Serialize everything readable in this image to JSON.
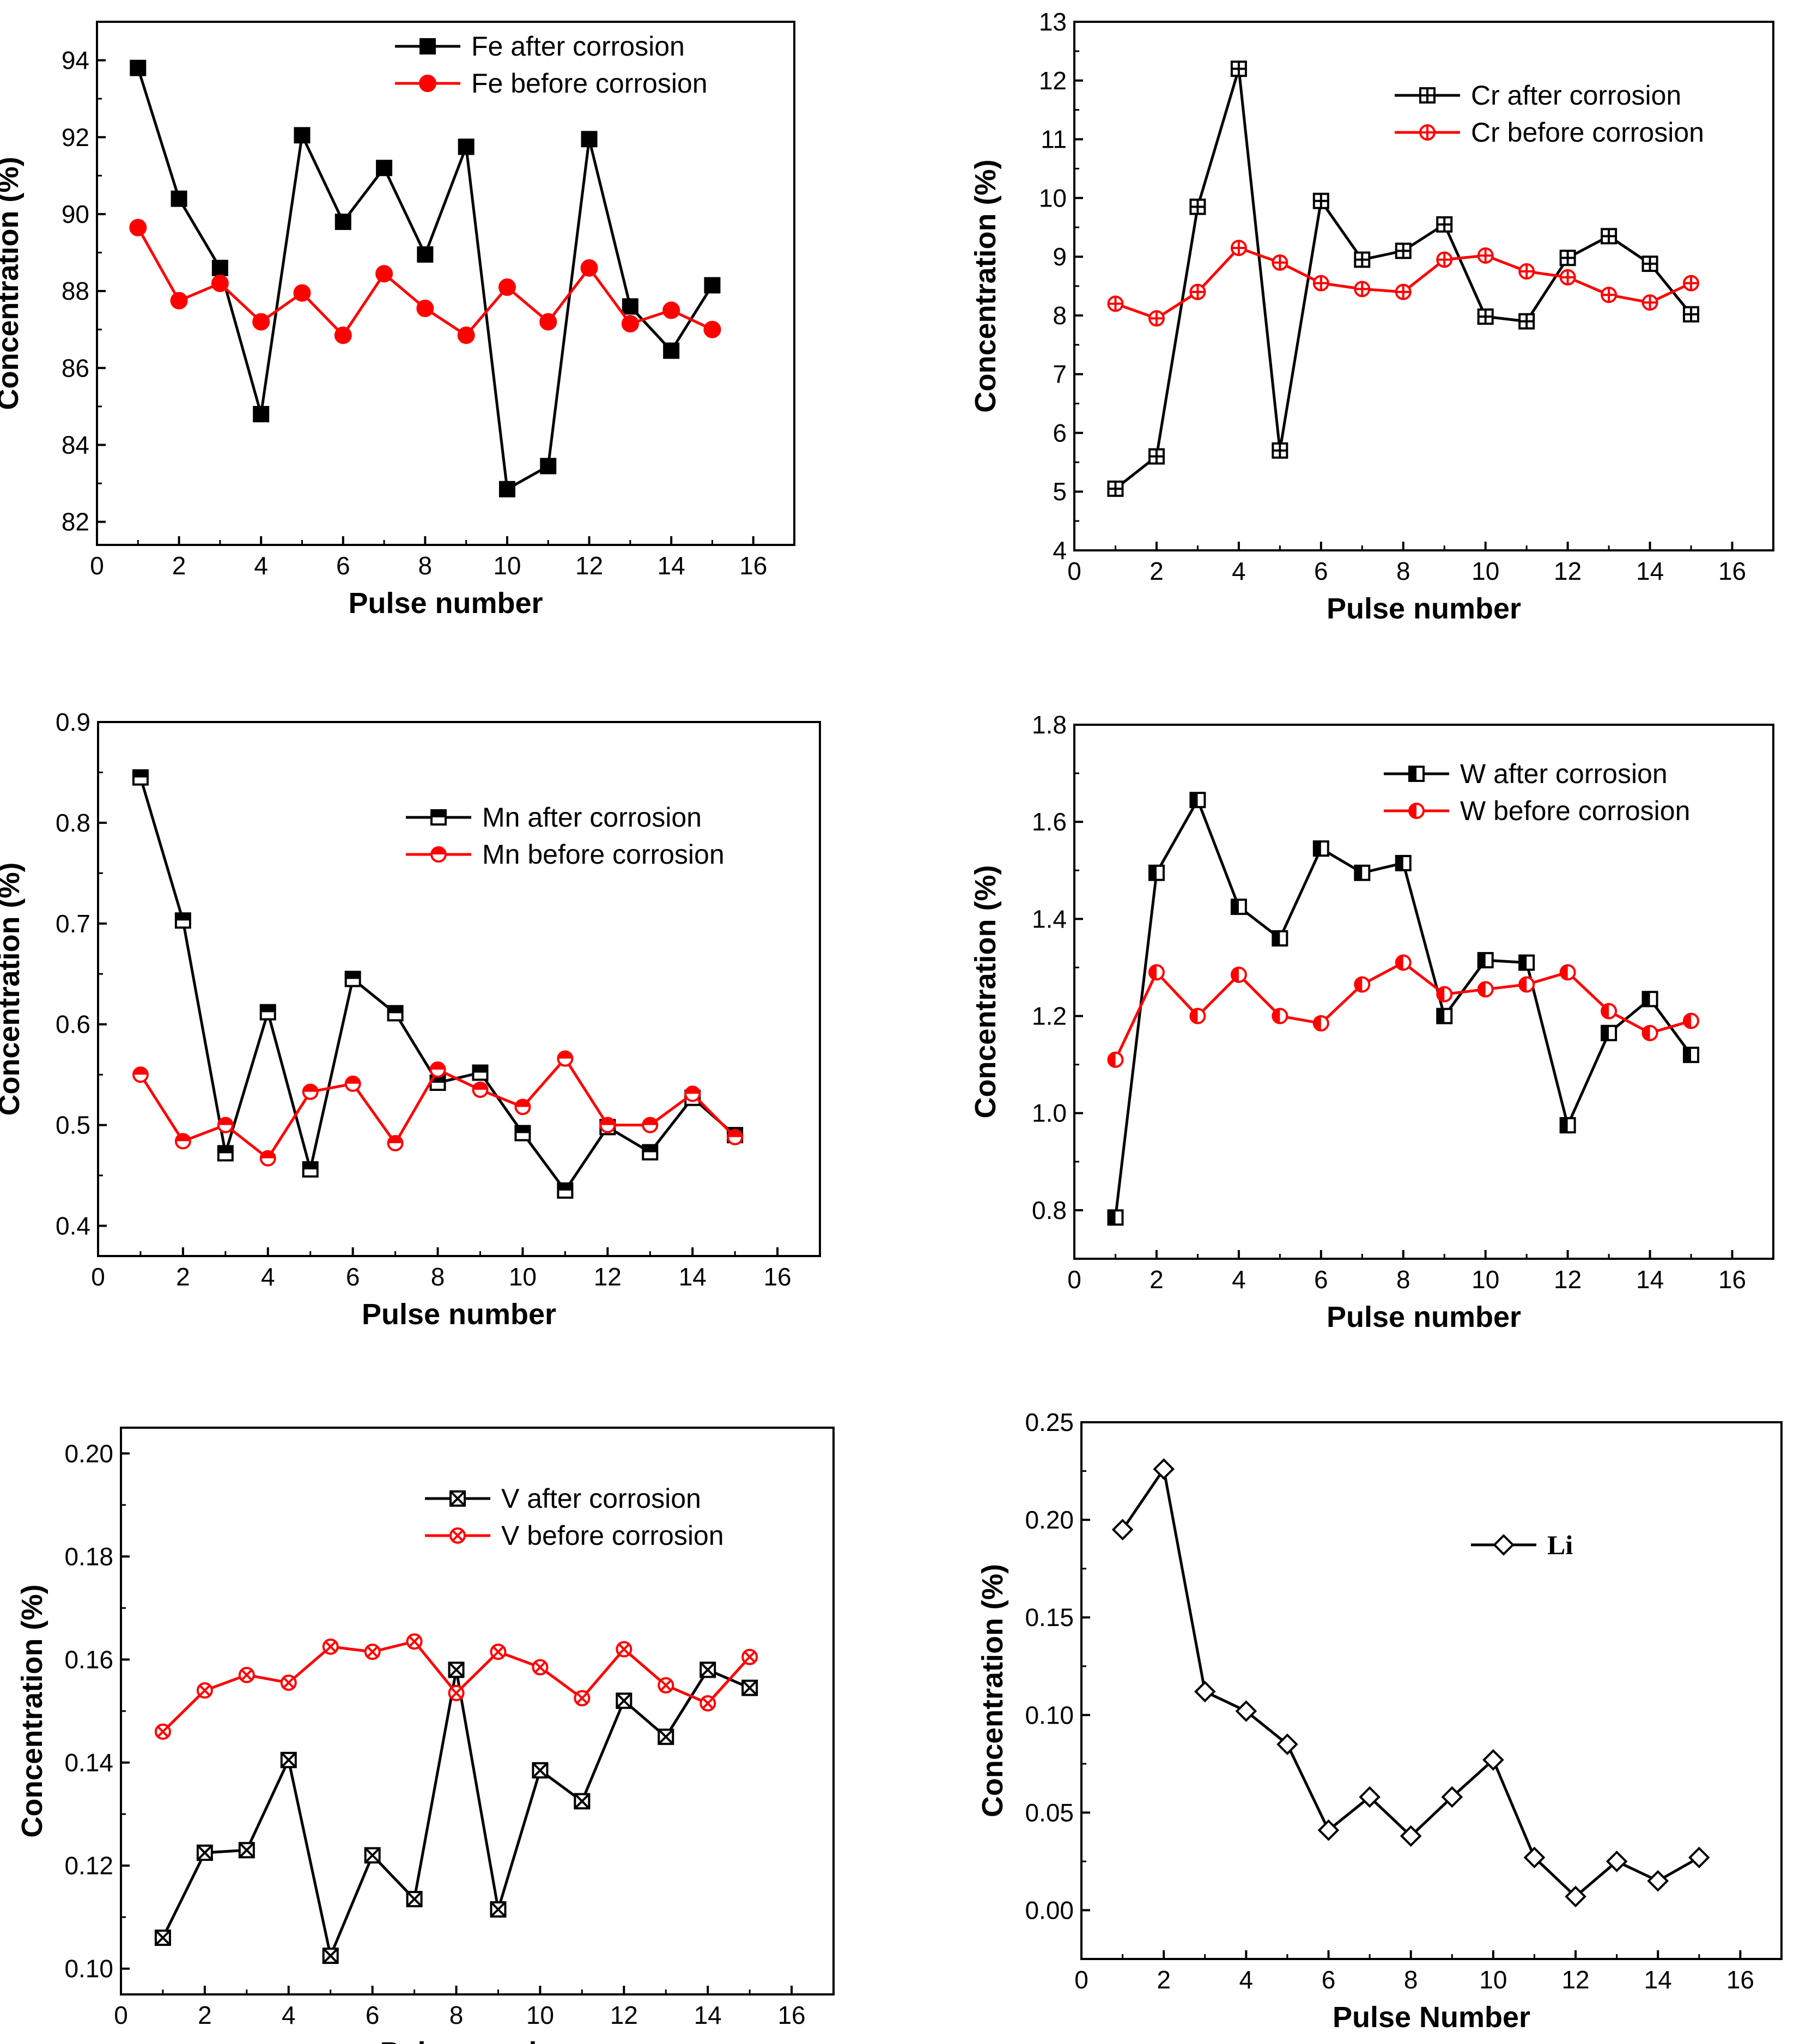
{
  "chart_data": [
    {
      "type": "line",
      "xlabel": "Pulse number",
      "ylabel": "Concentration (%)",
      "xlim": [
        0,
        17
      ],
      "ylim": [
        81.4,
        95
      ],
      "xticks": [
        0,
        2,
        4,
        6,
        8,
        10,
        12,
        14,
        16
      ],
      "yticks": [
        82,
        84,
        86,
        88,
        90,
        92,
        94
      ],
      "ytick_decimals": 0,
      "x": [
        1,
        2,
        3,
        4,
        5,
        6,
        7,
        8,
        9,
        10,
        11,
        12,
        13,
        14,
        15
      ],
      "series": [
        {
          "name": "Fe after corrosion",
          "color": "#000000",
          "marker": "square-filled",
          "values": [
            93.8,
            90.4,
            88.6,
            84.8,
            92.05,
            89.8,
            91.2,
            88.95,
            91.75,
            82.85,
            83.45,
            91.95,
            87.6,
            86.45,
            88.15
          ]
        },
        {
          "name": "Fe before corrosion",
          "color": "#ff0000",
          "marker": "circle-filled",
          "values": [
            89.65,
            87.75,
            88.2,
            87.2,
            87.95,
            86.85,
            88.45,
            87.55,
            86.85,
            88.1,
            87.2,
            88.6,
            87.15,
            87.5,
            87.0
          ]
        }
      ],
      "legend_position": "top-center"
    },
    {
      "type": "line",
      "xlabel": "Pulse number",
      "ylabel": "Concentration (%)",
      "xlim": [
        0,
        17
      ],
      "ylim": [
        4,
        13
      ],
      "xticks": [
        0,
        2,
        4,
        6,
        8,
        10,
        12,
        14,
        16
      ],
      "yticks": [
        4,
        5,
        6,
        7,
        8,
        9,
        10,
        11,
        12,
        13
      ],
      "ytick_decimals": 0,
      "x": [
        1,
        2,
        3,
        4,
        5,
        6,
        7,
        8,
        9,
        10,
        11,
        12,
        13,
        14,
        15
      ],
      "series": [
        {
          "name": "Cr after corrosion",
          "color": "#000000",
          "marker": "square-plus",
          "values": [
            5.05,
            5.6,
            9.85,
            12.2,
            5.7,
            9.95,
            8.95,
            9.1,
            9.55,
            7.98,
            7.9,
            8.98,
            9.35,
            8.88,
            8.02
          ]
        },
        {
          "name": "Cr before corrosion",
          "color": "#ff0000",
          "marker": "circle-plus",
          "values": [
            8.2,
            7.95,
            8.4,
            9.15,
            8.9,
            8.55,
            8.45,
            8.4,
            8.95,
            9.02,
            8.75,
            8.65,
            8.35,
            8.22,
            8.55
          ]
        }
      ],
      "legend_position": "top-right"
    },
    {
      "type": "line",
      "xlabel": "Pulse number",
      "ylabel": "Concentration (%)",
      "xlim": [
        0,
        17
      ],
      "ylim": [
        0.37,
        0.9
      ],
      "xticks": [
        0,
        2,
        4,
        6,
        8,
        10,
        12,
        14,
        16
      ],
      "yticks": [
        0.4,
        0.5,
        0.6,
        0.7,
        0.8,
        0.9
      ],
      "ytick_decimals": 1,
      "x": [
        1,
        2,
        3,
        4,
        5,
        6,
        7,
        8,
        9,
        10,
        11,
        12,
        13,
        14,
        15
      ],
      "series": [
        {
          "name": "Mn after corrosion",
          "color": "#000000",
          "marker": "square-top-half",
          "values": [
            0.845,
            0.703,
            0.472,
            0.612,
            0.456,
            0.645,
            0.611,
            0.542,
            0.552,
            0.492,
            0.435,
            0.498,
            0.473,
            0.527,
            0.49
          ]
        },
        {
          "name": "Mn before corrosion",
          "color": "#ff0000",
          "marker": "circle-top-half",
          "values": [
            0.55,
            0.484,
            0.5,
            0.467,
            0.533,
            0.541,
            0.482,
            0.555,
            0.535,
            0.518,
            0.566,
            0.5,
            0.5,
            0.531,
            0.488
          ]
        }
      ],
      "legend_position": "top-right"
    },
    {
      "type": "line",
      "xlabel": "Pulse number",
      "ylabel": "Concentration (%)",
      "xlim": [
        0,
        17
      ],
      "ylim": [
        0.7,
        1.8
      ],
      "xticks": [
        0,
        2,
        4,
        6,
        8,
        10,
        12,
        14,
        16
      ],
      "yticks": [
        0.8,
        1.0,
        1.2,
        1.4,
        1.6,
        1.8
      ],
      "ytick_decimals": 1,
      "x": [
        1,
        2,
        3,
        4,
        5,
        6,
        7,
        8,
        9,
        10,
        11,
        12,
        13,
        14,
        15
      ],
      "series": [
        {
          "name": "W after corrosion",
          "color": "#000000",
          "marker": "square-left-half",
          "values": [
            0.785,
            1.495,
            1.645,
            1.425,
            1.36,
            1.545,
            1.495,
            1.515,
            1.2,
            1.315,
            1.31,
            0.975,
            1.165,
            1.235,
            1.12
          ]
        },
        {
          "name": "W before corrosion",
          "color": "#ff0000",
          "marker": "circle-left-half",
          "values": [
            1.11,
            1.29,
            1.2,
            1.285,
            1.2,
            1.185,
            1.265,
            1.31,
            1.245,
            1.255,
            1.265,
            1.29,
            1.21,
            1.165,
            1.19
          ]
        }
      ],
      "legend_position": "top-right"
    },
    {
      "type": "line",
      "xlabel": "Pulse number",
      "ylabel": "Concentration (%)",
      "xlim": [
        0,
        17
      ],
      "ylim": [
        0.095,
        0.205
      ],
      "xticks": [
        0,
        2,
        4,
        6,
        8,
        10,
        12,
        14,
        16
      ],
      "yticks": [
        0.1,
        0.12,
        0.14,
        0.16,
        0.18,
        0.2
      ],
      "ytick_decimals": 2,
      "x": [
        1,
        2,
        3,
        4,
        5,
        6,
        7,
        8,
        9,
        10,
        11,
        12,
        13,
        14,
        15
      ],
      "series": [
        {
          "name": "V after corrosion",
          "color": "#000000",
          "marker": "square-x",
          "values": [
            0.106,
            0.1225,
            0.123,
            0.1405,
            0.1025,
            0.122,
            0.1135,
            0.158,
            0.1115,
            0.1385,
            0.1325,
            0.152,
            0.145,
            0.158,
            0.1545
          ]
        },
        {
          "name": "V before corrosion",
          "color": "#ff0000",
          "marker": "circle-x",
          "values": [
            0.146,
            0.154,
            0.157,
            0.1555,
            0.1625,
            0.1615,
            0.1635,
            0.1535,
            0.1615,
            0.1585,
            0.1525,
            0.162,
            0.155,
            0.1515,
            0.1605
          ]
        }
      ],
      "legend_position": "top-right"
    },
    {
      "type": "line",
      "xlabel": "Pulse Number",
      "ylabel": "Concentration (%)",
      "xlim": [
        0,
        17
      ],
      "ylim": [
        -0.025,
        0.25
      ],
      "xticks": [
        0,
        2,
        4,
        6,
        8,
        10,
        12,
        14,
        16
      ],
      "yticks": [
        0.0,
        0.05,
        0.1,
        0.15,
        0.2,
        0.25
      ],
      "ytick_decimals": 2,
      "x": [
        1,
        2,
        3,
        4,
        5,
        6,
        7,
        8,
        9,
        10,
        11,
        12,
        13,
        14,
        15
      ],
      "series": [
        {
          "name": "Li",
          "color": "#000000",
          "marker": "diamond-open",
          "values": [
            0.195,
            0.226,
            0.112,
            0.102,
            0.085,
            0.041,
            0.058,
            0.038,
            0.058,
            0.077,
            0.027,
            0.007,
            0.025,
            0.015,
            0.027
          ]
        }
      ],
      "legend_position": "top-right"
    }
  ]
}
